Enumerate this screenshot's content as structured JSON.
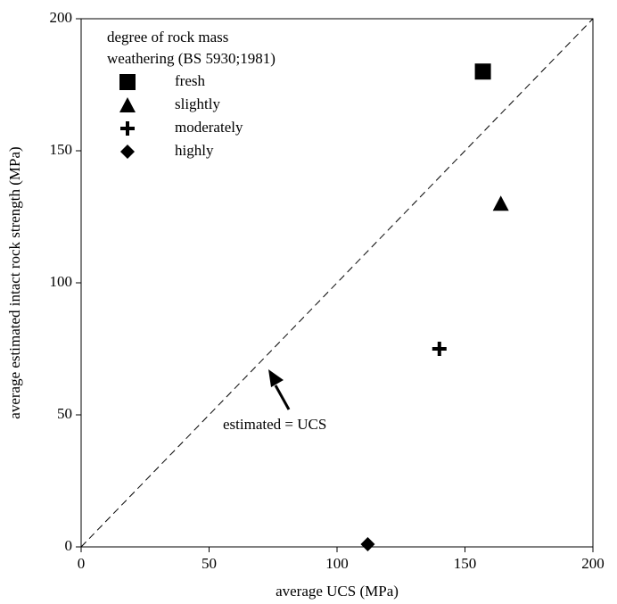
{
  "chart_data": {
    "type": "scatter",
    "x_label": "average UCS (MPa)",
    "y_label": "average estimated intact rock strength (MPa)",
    "xlim": [
      0,
      200
    ],
    "ylim": [
      0,
      200
    ],
    "xticks": [
      0,
      50,
      100,
      150,
      200
    ],
    "yticks": [
      0,
      50,
      100,
      150,
      200
    ],
    "legend_title": [
      "degree of rock mass",
      "weathering (BS 5930;1981)"
    ],
    "legend_position": "upper left",
    "series": [
      {
        "name": "fresh",
        "marker": "square",
        "color": "#000000",
        "x": [
          157
        ],
        "y": [
          180
        ]
      },
      {
        "name": "slightly",
        "marker": "triangle",
        "color": "#000000",
        "x": [
          164
        ],
        "y": [
          130
        ]
      },
      {
        "name": "moderately",
        "marker": "plus",
        "color": "#000000",
        "x": [
          140
        ],
        "y": [
          75
        ]
      },
      {
        "name": "highly",
        "marker": "diamond",
        "color": "#000000",
        "x": [
          112
        ],
        "y": [
          1
        ]
      }
    ],
    "identity_line": {
      "x": [
        0,
        200
      ],
      "y": [
        0,
        200
      ]
    },
    "annotation": "estimated = UCS"
  }
}
